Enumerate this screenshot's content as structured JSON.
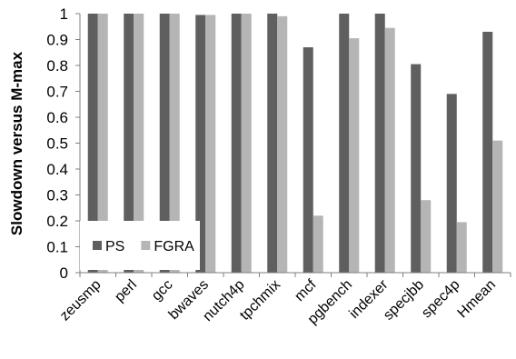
{
  "chart_data": {
    "type": "bar",
    "title": "",
    "xlabel": "",
    "ylabel": "Slowdown versus M-max",
    "ylim": [
      0,
      1
    ],
    "yticks": [
      "0",
      "0.1",
      "0.2",
      "0.3",
      "0.4",
      "0.5",
      "0.6",
      "0.7",
      "0.8",
      "0.9",
      "1"
    ],
    "grid": false,
    "legend_position": "bottom-left",
    "categories": [
      "zeusmp",
      "perl",
      "gcc",
      "bwaves",
      "nutch4p",
      "tpchmix",
      "mcf",
      "pgbench",
      "indexer",
      "specjbb",
      "spec4p",
      "Hmean"
    ],
    "series": [
      {
        "name": "PS",
        "color": "#5f5f5f",
        "values": [
          1.0,
          1.0,
          1.0,
          0.995,
          1.0,
          1.0,
          0.87,
          1.0,
          1.0,
          0.805,
          0.69,
          0.93
        ]
      },
      {
        "name": "FGRA",
        "color": "#b5b5b5",
        "values": [
          1.0,
          1.0,
          1.0,
          0.995,
          1.0,
          0.99,
          0.22,
          0.905,
          0.945,
          0.28,
          0.195,
          0.51
        ]
      }
    ]
  }
}
